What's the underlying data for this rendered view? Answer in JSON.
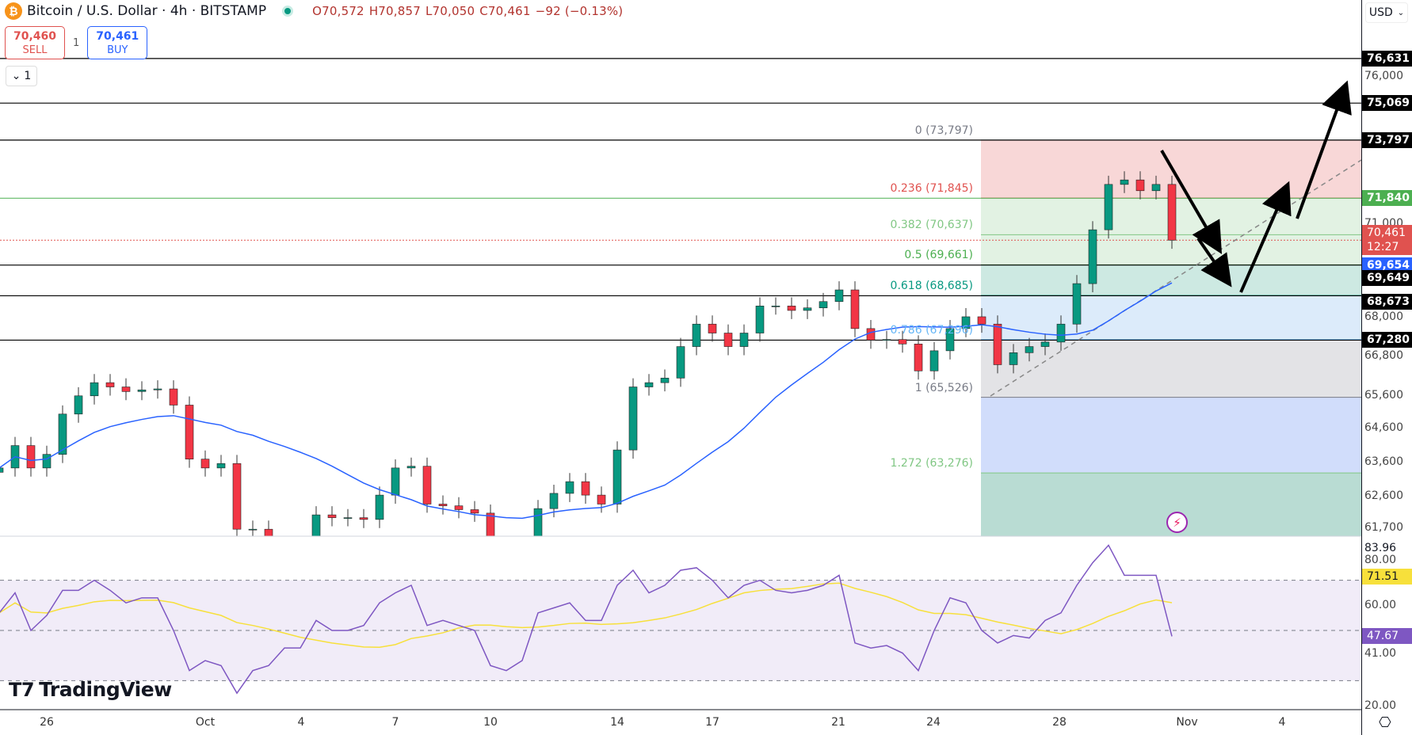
{
  "header": {
    "symbol": "Bitcoin / U.S. Dollar · 4h · BITSTAMP",
    "coin_icon": "bitcoin-icon",
    "open": "O70,572",
    "high": "H70,857",
    "low": "L70,050",
    "close": "C70,461",
    "change": "−92 (−0.13%)",
    "market_status_color": "#089981"
  },
  "trade": {
    "sell_price": "70,460",
    "sell_label": "SELL",
    "quantity": "1",
    "buy_price": "70,461",
    "buy_label": "BUY"
  },
  "indicator_collapse": {
    "icon": "chevron-down-icon",
    "count": "1"
  },
  "currency": "USD",
  "logo": "TradingView",
  "price_axis": {
    "labels": [
      "76,000",
      "71,000",
      "68,000",
      "66,800",
      "65,600",
      "64,600",
      "63,600",
      "62,600",
      "61,700"
    ],
    "badges": [
      {
        "text": "76,631",
        "color": "#000000"
      },
      {
        "text": "75,069",
        "color": "#000000"
      },
      {
        "text": "73,797",
        "color": "#000000"
      },
      {
        "text": "71,840",
        "color": "#4caf50"
      },
      {
        "text": "70,461",
        "sub": "12:27",
        "color": "#e0524f"
      },
      {
        "text": "69,654",
        "color": "#2962ff"
      },
      {
        "text": "69,649",
        "color": "#000000"
      },
      {
        "text": "68,673",
        "color": "#000000"
      },
      {
        "text": "67,280",
        "color": "#000000"
      }
    ]
  },
  "rsi_axis": {
    "labels": [
      "80.00",
      "60.00",
      "41.00",
      "20.00"
    ],
    "max": "83.96",
    "ma_badge": "71.51",
    "ma_color": "#f7e03b",
    "rsi_badge": "47.67",
    "rsi_color": "#7e57c2"
  },
  "time_axis": [
    "26",
    "Oct",
    "4",
    "7",
    "10",
    "14",
    "17",
    "21",
    "24",
    "28",
    "Nov",
    "4"
  ],
  "chart_data": {
    "type": "candlestick",
    "title": "Bitcoin / U.S. Dollar · 4h · BITSTAMP",
    "y_scale": "log",
    "ylim": [
      61700,
      76631
    ],
    "up_color": "#089981",
    "down_color": "#f23645",
    "ma_color": "#2962ff",
    "times": [
      "09-24 12",
      "09-25 00",
      "09-25 12",
      "09-26 00",
      "09-26 12",
      "09-27 00",
      "09-27 12",
      "09-28 00",
      "09-28 12",
      "09-29 00",
      "09-29 12",
      "09-30 00",
      "09-30 12",
      "10-01 00",
      "10-01 12",
      "10-02 00",
      "10-02 12",
      "10-03 00",
      "10-03 12",
      "10-04 00",
      "10-04 12",
      "10-05 00",
      "10-05 12",
      "10-06 00",
      "10-06 12",
      "10-07 00",
      "10-07 12",
      "10-08 00",
      "10-08 12",
      "10-09 00",
      "10-09 12",
      "10-10 00",
      "10-10 12",
      "10-11 00",
      "10-11 12",
      "10-12 00",
      "10-12 12",
      "10-13 00",
      "10-13 12",
      "10-14 00",
      "10-14 12",
      "10-15 00",
      "10-15 12",
      "10-16 00",
      "10-16 12",
      "10-17 00",
      "10-17 12",
      "10-18 00",
      "10-18 12",
      "10-19 00",
      "10-19 12",
      "10-20 00",
      "10-20 12",
      "10-21 00",
      "10-21 12",
      "10-22 00",
      "10-22 12",
      "10-23 00",
      "10-23 12",
      "10-24 00",
      "10-24 12",
      "10-25 00",
      "10-25 12",
      "10-26 00",
      "10-26 12",
      "10-27 00",
      "10-27 12",
      "10-28 00",
      "10-28 12",
      "10-29 00",
      "10-29 12",
      "10-30 00",
      "10-30 12",
      "10-31 00",
      "10-31 12"
    ],
    "close": [
      63420,
      64080,
      63420,
      63820,
      65020,
      65570,
      65970,
      65840,
      65700,
      65750,
      65780,
      65290,
      63680,
      63420,
      63550,
      61650,
      61650,
      61200,
      60960,
      61090,
      62060,
      61980,
      61980,
      61930,
      62630,
      63420,
      63470,
      62370,
      62320,
      62210,
      62110,
      61090,
      60840,
      60960,
      62240,
      62680,
      63020,
      62630,
      62370,
      63950,
      65840,
      65970,
      66110,
      67080,
      67780,
      67500,
      67080,
      67500,
      68350,
      68350,
      68210,
      68290,
      68490,
      68860,
      67640,
      67280,
      67300,
      67160,
      66330,
      66950,
      67640,
      68010,
      67780,
      66520,
      66890,
      67080,
      67220,
      67780,
      69060,
      70800,
      72300,
      72450,
      72090,
      72300,
      70461
    ],
    "rsi": [
      57,
      65,
      50,
      56,
      66,
      66,
      70,
      66,
      61,
      63,
      63,
      50,
      34,
      38,
      36,
      25,
      34,
      36,
      43,
      43,
      54,
      50,
      50,
      52,
      61,
      65,
      68,
      52,
      54,
      52,
      50,
      36,
      34,
      38,
      57,
      59,
      61,
      54,
      54,
      68,
      74,
      65,
      68,
      74,
      75,
      70,
      63,
      68,
      70,
      66,
      65,
      66,
      68,
      72,
      45,
      43,
      44,
      41,
      34,
      50,
      63,
      61,
      50,
      45,
      48,
      47,
      54,
      57,
      68,
      77,
      83.96,
      72,
      72,
      72,
      47.67
    ],
    "rsi_levels": [
      70,
      50,
      30
    ],
    "rsi_ylim": [
      20,
      83.96
    ],
    "fib": {
      "color_zones": [
        "#f8d7d7",
        "#e2f2e3",
        "#e2f2e3",
        "#cde9e2",
        "#dcebfa",
        "#e3e3e6",
        "#d1ddfb",
        "#b9dcd3"
      ],
      "levels": [
        {
          "ratio": "0",
          "price": 73797,
          "label": "0 (73,797)",
          "color": "#787b86"
        },
        {
          "ratio": "0.236",
          "price": 71845,
          "label": "0.236 (71,845)",
          "color": "#e0524f"
        },
        {
          "ratio": "0.382",
          "price": 70637,
          "label": "0.382 (70,637)",
          "color": "#81c784"
        },
        {
          "ratio": "0.5",
          "price": 69661,
          "label": "0.5 (69,661)",
          "color": "#4caf50"
        },
        {
          "ratio": "0.618",
          "price": 68685,
          "label": "0.618 (68,685)",
          "color": "#089981"
        },
        {
          "ratio": "0.786",
          "price": 67296,
          "label": "0.786 (67,296)",
          "color": "#64b5f6"
        },
        {
          "ratio": "1",
          "price": 65526,
          "label": "1 (65,526)",
          "color": "#787b86"
        },
        {
          "ratio": "1.272",
          "price": 63276,
          "label": "1.272 (63,276)",
          "color": "#81c784"
        }
      ]
    },
    "horizontal_lines": [
      76631,
      75069,
      73797,
      69654,
      68673,
      67280
    ],
    "green_line": 71840,
    "last_price": 70461
  }
}
